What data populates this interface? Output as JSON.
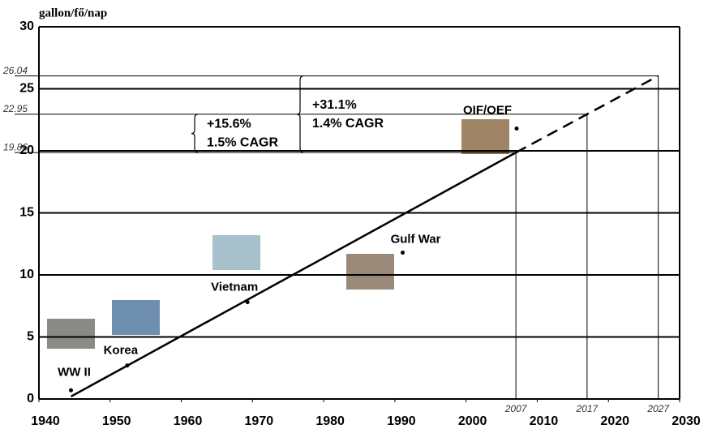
{
  "chart_data": {
    "type": "scatter",
    "y_label": "gallon/fő/nap",
    "labels": [
      "WW II",
      "Korea",
      "Vietnam",
      "Gulf War",
      "OIF/OEF"
    ],
    "x": [
      1944.5,
      1952.4,
      1969.3,
      1991.1,
      2007.1
    ],
    "values": [
      0.7,
      2.7,
      7.8,
      11.8,
      21.8
    ],
    "trend_line": {
      "x": [
        1944.5,
        2007,
        2027
      ],
      "values": [
        0.2,
        19.86,
        26.04
      ],
      "color": "#000000"
    },
    "xlim": [
      1940,
      2030
    ],
    "xticks": [
      1940,
      1950,
      1960,
      1970,
      1980,
      1990,
      2000,
      2010,
      2020,
      2030
    ],
    "ylim": [
      0,
      30
    ],
    "yticks": [
      0,
      5,
      10,
      15,
      20,
      25,
      30
    ],
    "reference_yticks": [
      19.86,
      22.95,
      26.04
    ],
    "reference_xticks": [
      2007,
      2017,
      2027
    ],
    "annotations": [
      [
        "+15.6%",
        "1.5% CAGR"
      ],
      [
        "+31.1%",
        "1.4% CAGR"
      ]
    ],
    "grid": true,
    "color": "#000000"
  }
}
